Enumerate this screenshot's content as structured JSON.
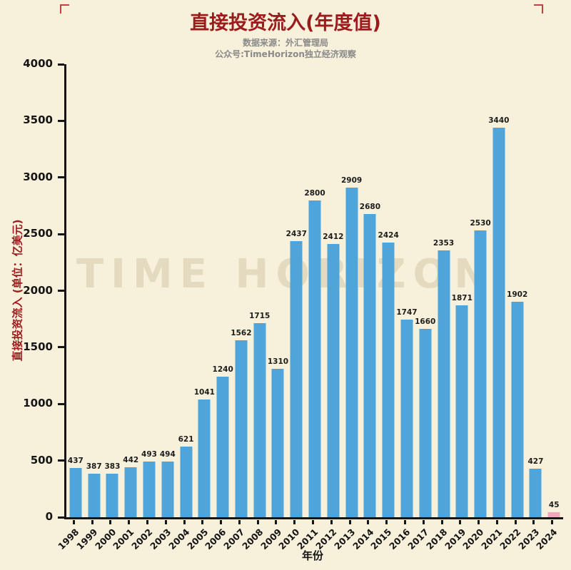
{
  "title": "直接投资流入(年度值)",
  "subtitle_line1": "数据来源：外汇管理局",
  "subtitle_line2": "公众号:TimeHorizon独立经济观察",
  "watermark": "TIME HORIZON",
  "colors": {
    "background": "#f7f0da",
    "title": "#9b1c1c",
    "bar": "#4FA4D9",
    "highlight_bar": "#F2A8BC",
    "axis": "#151515"
  },
  "chart_data": {
    "type": "bar",
    "title": "直接投资流入(年度值)",
    "xlabel": "年份",
    "ylabel": "直接投资流入 (单位：亿美元)",
    "ylim": [
      0,
      4000
    ],
    "yticks": [
      0,
      500,
      1000,
      1500,
      2000,
      2500,
      3000,
      3500,
      4000
    ],
    "categories": [
      "1998",
      "1999",
      "2000",
      "2001",
      "2002",
      "2003",
      "2004",
      "2005",
      "2006",
      "2007",
      "2008",
      "2009",
      "2010",
      "2011",
      "2012",
      "2013",
      "2014",
      "2015",
      "2016",
      "2017",
      "2018",
      "2019",
      "2020",
      "2021",
      "2022",
      "2023",
      "2024"
    ],
    "values": [
      437,
      387,
      383,
      442,
      493,
      494,
      621,
      1041,
      1240,
      1562,
      1715,
      1310,
      2437,
      2800,
      2412,
      2909,
      2680,
      2424,
      1747,
      1660,
      2353,
      1871,
      2530,
      3440,
      1902,
      427,
      45
    ],
    "bar_color": "#4FA4D9",
    "highlight_index": 26,
    "highlight_color": "#F2A8BC",
    "grid": false,
    "legend_position": "none"
  }
}
